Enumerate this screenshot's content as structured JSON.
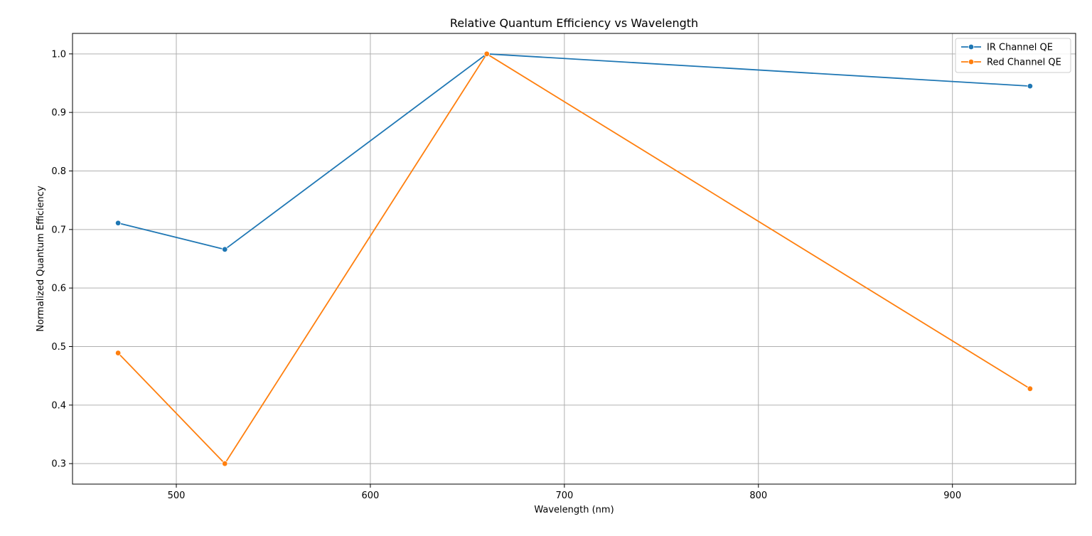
{
  "chart_data": {
    "type": "line",
    "title": "Relative Quantum Efficiency vs Wavelength",
    "xlabel": "Wavelength (nm)",
    "ylabel": "Normalized Quantum Efficiency",
    "x": [
      470,
      525,
      660,
      940
    ],
    "xlim": [
      446.5,
      963.5
    ],
    "ylim": [
      0.265,
      1.035
    ],
    "xticks": [
      500,
      600,
      700,
      800,
      900
    ],
    "yticks": [
      0.3,
      0.4,
      0.5,
      0.6,
      0.7,
      0.8,
      0.9,
      1.0
    ],
    "grid": true,
    "legend_position": "top-right",
    "series": [
      {
        "name": "IR Channel QE",
        "color": "#1f77b4",
        "values": [
          0.711,
          0.666,
          1.0,
          0.945
        ]
      },
      {
        "name": "Red Channel QE",
        "color": "#ff7f0e",
        "values": [
          0.489,
          0.3,
          1.0,
          0.428
        ]
      }
    ]
  }
}
